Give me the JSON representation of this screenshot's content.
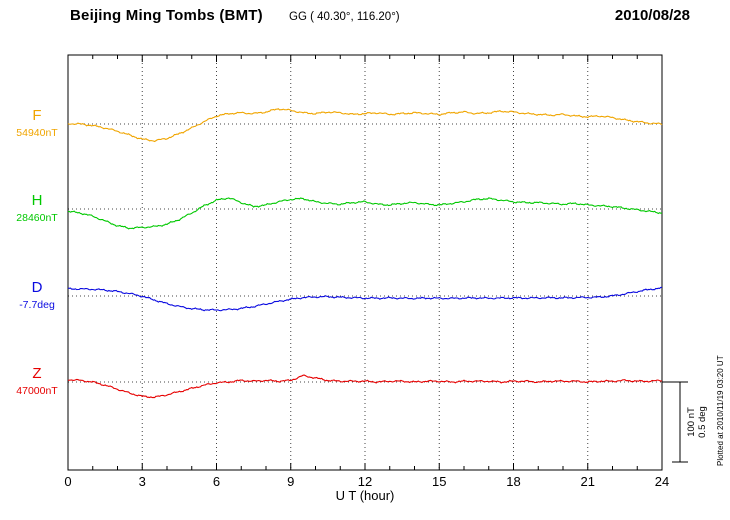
{
  "header": {
    "station": "Beijing Ming Tombs (BMT)",
    "coords": "GG ( 40.30°, 116.20°)",
    "date": "2010/08/28"
  },
  "axis": {
    "xlabel": "U T (hour)",
    "ticks": [
      "0",
      "3",
      "6",
      "9",
      "12",
      "15",
      "18",
      "21",
      "24"
    ]
  },
  "scalebar": {
    "nt_label": "100 nT",
    "deg_label": "0.5 deg"
  },
  "footer": {
    "plotted_at": "Plotted at 2010/11/19 03:20 UT"
  },
  "colors": {
    "F": "#f0a500",
    "H": "#00c800",
    "D": "#0a0ae0",
    "Z": "#e60000"
  },
  "chart_data": {
    "type": "line",
    "title": "Beijing Ming Tombs (BMT) magnetogram",
    "date": "2010/08/28",
    "xlabel": "U T (hour)",
    "xlim": [
      0,
      24
    ],
    "x_start_hour": 0,
    "x_step_hours": 0.5,
    "n_points": 49,
    "grid": "dotted vertical every 3 h, dotted horizontal baseline per trace",
    "scale": {
      "nT_per_bar": 100,
      "deg_per_bar": 0.5
    },
    "series": [
      {
        "name": "F",
        "unit": "nT",
        "baseline_value": 54940,
        "baseline_label": "54940nT",
        "offsets": [
          0.5,
          0,
          -2,
          -5,
          -9,
          -14,
          -19,
          -21,
          -18,
          -12,
          -5,
          3,
          10,
          13,
          14,
          13,
          15,
          19,
          17,
          14,
          13,
          15,
          14,
          12,
          13,
          14,
          12,
          13,
          14,
          13,
          12,
          14,
          15,
          13,
          14,
          16,
          15,
          13,
          12,
          11,
          12,
          10,
          9,
          10,
          8,
          5,
          3,
          1,
          0
        ]
      },
      {
        "name": "H",
        "unit": "nT",
        "baseline_value": 28460,
        "baseline_label": "28460nT",
        "offsets": [
          -3,
          -5,
          -9,
          -15,
          -21,
          -24,
          -23,
          -22,
          -19,
          -13,
          -5,
          4,
          11,
          14,
          8,
          3,
          5,
          9,
          12,
          13,
          9,
          7,
          6,
          8,
          9,
          6,
          5,
          7,
          8,
          6,
          5,
          7,
          9,
          12,
          13,
          11,
          9,
          8,
          8,
          7,
          6,
          7,
          5,
          4,
          3,
          1,
          -1,
          -3,
          -5
        ]
      },
      {
        "name": "D",
        "unit": "deg",
        "baseline_value": -7.7,
        "baseline_label": "-7.7deg",
        "offsets": [
          0.045,
          0.044,
          0.042,
          0.037,
          0.028,
          0.015,
          -0.002,
          -0.025,
          -0.048,
          -0.066,
          -0.079,
          -0.086,
          -0.088,
          -0.085,
          -0.078,
          -0.066,
          -0.05,
          -0.034,
          -0.02,
          -0.01,
          -0.006,
          -0.004,
          -0.008,
          -0.011,
          -0.013,
          -0.014,
          -0.012,
          -0.014,
          -0.015,
          -0.013,
          -0.014,
          -0.015,
          -0.013,
          -0.012,
          -0.014,
          -0.013,
          -0.012,
          -0.013,
          -0.012,
          -0.011,
          -0.012,
          -0.01,
          -0.009,
          -0.007,
          0.001,
          0.013,
          0.028,
          0.041,
          0.05
        ]
      },
      {
        "name": "Z",
        "unit": "nT",
        "baseline_value": 47000,
        "baseline_label": "47000nT",
        "offsets": [
          3,
          2,
          0,
          -4,
          -9,
          -14,
          -18,
          -19,
          -16,
          -12,
          -8,
          -4,
          -1,
          0,
          2,
          1,
          2,
          1,
          2,
          8,
          5,
          2,
          1,
          1,
          1,
          0,
          1,
          1,
          0,
          1,
          1,
          0,
          1,
          1,
          1,
          0,
          1,
          1,
          0,
          1,
          1,
          1,
          0,
          1,
          1,
          2,
          1,
          1,
          2
        ]
      }
    ]
  }
}
